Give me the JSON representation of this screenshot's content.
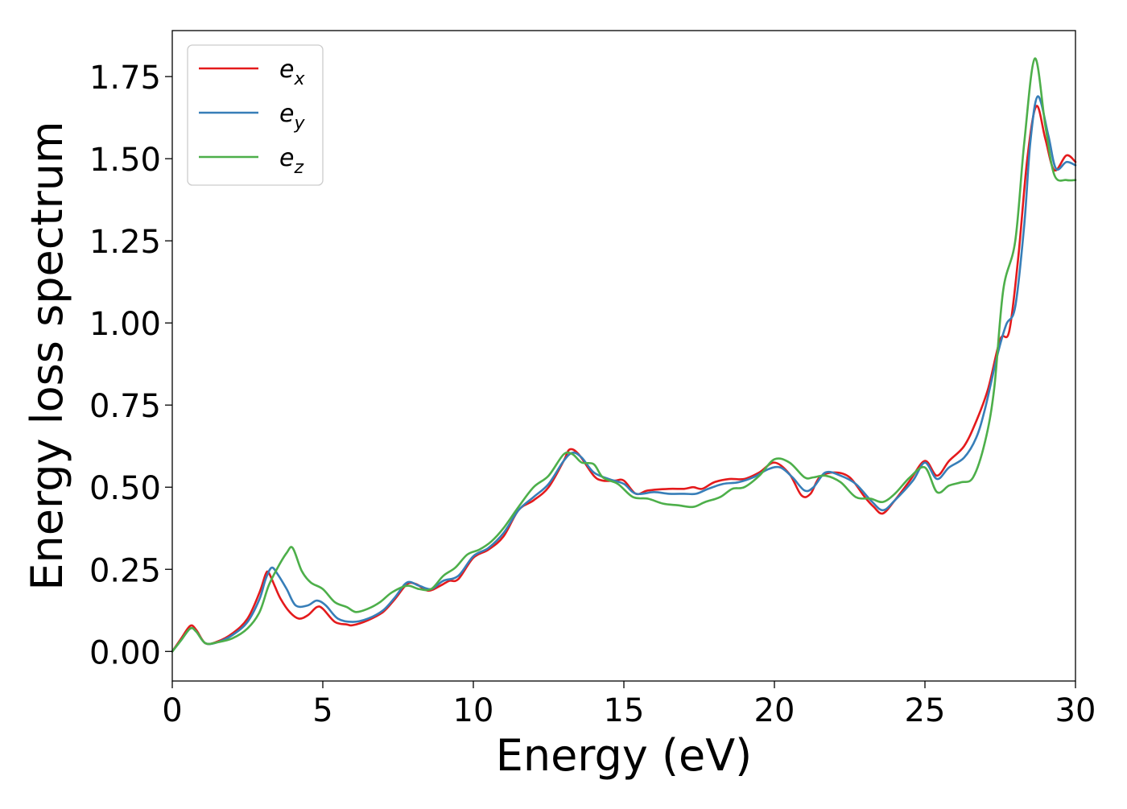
{
  "chart_data": {
    "type": "line",
    "xlabel": "Energy (eV)",
    "ylabel": "Energy loss spectrum",
    "xlim": [
      0,
      30
    ],
    "ylim": [
      -0.09,
      1.89
    ],
    "xticks": [
      0,
      5,
      10,
      15,
      20,
      25,
      30
    ],
    "xtick_labels": [
      "0",
      "5",
      "10",
      "15",
      "20",
      "25",
      "30"
    ],
    "yticks": [
      0,
      0.25,
      0.5,
      0.75,
      1.0,
      1.25,
      1.5,
      1.75
    ],
    "ytick_labels": [
      "0.00",
      "0.25",
      "0.50",
      "0.75",
      "1.00",
      "1.25",
      "1.50",
      "1.75"
    ],
    "grid": false,
    "legend_position": "top-left",
    "series": [
      {
        "name": "e_x",
        "legend_base": "e",
        "legend_sub": "x",
        "color": "#e41a1c",
        "points": [
          [
            0,
            0
          ],
          [
            0.3,
            0.04
          ],
          [
            0.6,
            0.078
          ],
          [
            0.8,
            0.065
          ],
          [
            1.1,
            0.025
          ],
          [
            1.5,
            0.03
          ],
          [
            2,
            0.055
          ],
          [
            2.5,
            0.1
          ],
          [
            2.9,
            0.18
          ],
          [
            3.1,
            0.235
          ],
          [
            3.2,
            0.24
          ],
          [
            3.4,
            0.2
          ],
          [
            3.6,
            0.16
          ],
          [
            3.9,
            0.12
          ],
          [
            4.2,
            0.1
          ],
          [
            4.5,
            0.11
          ],
          [
            4.8,
            0.135
          ],
          [
            5,
            0.13
          ],
          [
            5.4,
            0.09
          ],
          [
            5.8,
            0.082
          ],
          [
            6,
            0.08
          ],
          [
            6.5,
            0.095
          ],
          [
            7,
            0.12
          ],
          [
            7.4,
            0.16
          ],
          [
            7.8,
            0.205
          ],
          [
            8.1,
            0.205
          ],
          [
            8.5,
            0.185
          ],
          [
            8.9,
            0.2
          ],
          [
            9.2,
            0.215
          ],
          [
            9.5,
            0.22
          ],
          [
            10,
            0.285
          ],
          [
            10.5,
            0.31
          ],
          [
            11,
            0.35
          ],
          [
            11.5,
            0.43
          ],
          [
            12,
            0.46
          ],
          [
            12.5,
            0.5
          ],
          [
            13,
            0.58
          ],
          [
            13.2,
            0.615
          ],
          [
            13.5,
            0.6
          ],
          [
            14,
            0.535
          ],
          [
            14.3,
            0.52
          ],
          [
            14.7,
            0.52
          ],
          [
            15,
            0.52
          ],
          [
            15.4,
            0.48
          ],
          [
            15.8,
            0.49
          ],
          [
            16.5,
            0.495
          ],
          [
            17,
            0.495
          ],
          [
            17.3,
            0.5
          ],
          [
            17.6,
            0.495
          ],
          [
            18,
            0.515
          ],
          [
            18.5,
            0.525
          ],
          [
            19,
            0.525
          ],
          [
            19.5,
            0.545
          ],
          [
            20,
            0.575
          ],
          [
            20.5,
            0.54
          ],
          [
            20.9,
            0.475
          ],
          [
            21.2,
            0.48
          ],
          [
            21.5,
            0.53
          ],
          [
            22,
            0.545
          ],
          [
            22.5,
            0.53
          ],
          [
            23,
            0.47
          ],
          [
            23.3,
            0.44
          ],
          [
            23.6,
            0.42
          ],
          [
            24,
            0.46
          ],
          [
            24.5,
            0.52
          ],
          [
            25,
            0.58
          ],
          [
            25.4,
            0.535
          ],
          [
            25.8,
            0.58
          ],
          [
            26.3,
            0.625
          ],
          [
            26.7,
            0.7
          ],
          [
            27.1,
            0.8
          ],
          [
            27.5,
            0.95
          ],
          [
            27.8,
            0.975
          ],
          [
            28.1,
            1.2
          ],
          [
            28.4,
            1.5
          ],
          [
            28.7,
            1.66
          ],
          [
            29,
            1.56
          ],
          [
            29.3,
            1.465
          ],
          [
            29.7,
            1.51
          ],
          [
            30,
            1.49
          ]
        ]
      },
      {
        "name": "e_y",
        "legend_base": "e",
        "legend_sub": "y",
        "color": "#377eb8",
        "points": [
          [
            0,
            0
          ],
          [
            0.3,
            0.035
          ],
          [
            0.6,
            0.07
          ],
          [
            0.8,
            0.06
          ],
          [
            1.1,
            0.025
          ],
          [
            1.5,
            0.028
          ],
          [
            2,
            0.05
          ],
          [
            2.5,
            0.09
          ],
          [
            2.9,
            0.16
          ],
          [
            3.1,
            0.22
          ],
          [
            3.3,
            0.255
          ],
          [
            3.5,
            0.235
          ],
          [
            3.8,
            0.19
          ],
          [
            4.1,
            0.14
          ],
          [
            4.5,
            0.14
          ],
          [
            4.8,
            0.155
          ],
          [
            5.1,
            0.14
          ],
          [
            5.5,
            0.1
          ],
          [
            6,
            0.09
          ],
          [
            6.5,
            0.1
          ],
          [
            7,
            0.125
          ],
          [
            7.4,
            0.165
          ],
          [
            7.8,
            0.21
          ],
          [
            8.2,
            0.2
          ],
          [
            8.6,
            0.19
          ],
          [
            9,
            0.215
          ],
          [
            9.5,
            0.23
          ],
          [
            10,
            0.29
          ],
          [
            10.5,
            0.315
          ],
          [
            11,
            0.36
          ],
          [
            11.5,
            0.43
          ],
          [
            12,
            0.47
          ],
          [
            12.5,
            0.51
          ],
          [
            13,
            0.58
          ],
          [
            13.3,
            0.605
          ],
          [
            13.6,
            0.59
          ],
          [
            14,
            0.545
          ],
          [
            14.5,
            0.525
          ],
          [
            15,
            0.51
          ],
          [
            15.4,
            0.48
          ],
          [
            16,
            0.485
          ],
          [
            16.5,
            0.48
          ],
          [
            17,
            0.48
          ],
          [
            17.4,
            0.48
          ],
          [
            17.8,
            0.495
          ],
          [
            18.3,
            0.51
          ],
          [
            18.8,
            0.515
          ],
          [
            19.3,
            0.53
          ],
          [
            19.8,
            0.555
          ],
          [
            20.2,
            0.56
          ],
          [
            20.6,
            0.53
          ],
          [
            21,
            0.49
          ],
          [
            21.3,
            0.5
          ],
          [
            21.7,
            0.545
          ],
          [
            22.2,
            0.535
          ],
          [
            22.7,
            0.51
          ],
          [
            23.2,
            0.46
          ],
          [
            23.6,
            0.43
          ],
          [
            24,
            0.46
          ],
          [
            24.6,
            0.52
          ],
          [
            25,
            0.575
          ],
          [
            25.4,
            0.525
          ],
          [
            25.8,
            0.56
          ],
          [
            26.3,
            0.59
          ],
          [
            26.7,
            0.65
          ],
          [
            27,
            0.74
          ],
          [
            27.4,
            0.9
          ],
          [
            27.7,
            0.995
          ],
          [
            28,
            1.05
          ],
          [
            28.3,
            1.3
          ],
          [
            28.5,
            1.55
          ],
          [
            28.75,
            1.69
          ],
          [
            29.1,
            1.57
          ],
          [
            29.35,
            1.47
          ],
          [
            29.7,
            1.49
          ],
          [
            30,
            1.48
          ]
        ]
      },
      {
        "name": "e_z",
        "legend_base": "e",
        "legend_sub": "z",
        "color": "#4daf4a",
        "points": [
          [
            0,
            0
          ],
          [
            0.3,
            0.035
          ],
          [
            0.6,
            0.07
          ],
          [
            0.8,
            0.06
          ],
          [
            1.1,
            0.025
          ],
          [
            1.5,
            0.028
          ],
          [
            2,
            0.04
          ],
          [
            2.5,
            0.07
          ],
          [
            2.9,
            0.12
          ],
          [
            3.2,
            0.2
          ],
          [
            3.5,
            0.255
          ],
          [
            3.8,
            0.3
          ],
          [
            4,
            0.315
          ],
          [
            4.3,
            0.245
          ],
          [
            4.6,
            0.21
          ],
          [
            5,
            0.19
          ],
          [
            5.4,
            0.15
          ],
          [
            5.8,
            0.135
          ],
          [
            6.1,
            0.12
          ],
          [
            6.5,
            0.13
          ],
          [
            6.9,
            0.15
          ],
          [
            7.3,
            0.18
          ],
          [
            7.8,
            0.2
          ],
          [
            8.2,
            0.19
          ],
          [
            8.6,
            0.19
          ],
          [
            9,
            0.23
          ],
          [
            9.4,
            0.255
          ],
          [
            9.8,
            0.295
          ],
          [
            10.2,
            0.31
          ],
          [
            10.6,
            0.335
          ],
          [
            11,
            0.375
          ],
          [
            11.5,
            0.44
          ],
          [
            12,
            0.5
          ],
          [
            12.5,
            0.535
          ],
          [
            13,
            0.6
          ],
          [
            13.3,
            0.6
          ],
          [
            13.6,
            0.575
          ],
          [
            14,
            0.57
          ],
          [
            14.3,
            0.53
          ],
          [
            14.8,
            0.51
          ],
          [
            15.3,
            0.47
          ],
          [
            15.8,
            0.465
          ],
          [
            16.3,
            0.45
          ],
          [
            16.8,
            0.445
          ],
          [
            17.3,
            0.44
          ],
          [
            17.7,
            0.455
          ],
          [
            18.2,
            0.47
          ],
          [
            18.6,
            0.495
          ],
          [
            19,
            0.5
          ],
          [
            19.5,
            0.535
          ],
          [
            20,
            0.585
          ],
          [
            20.5,
            0.575
          ],
          [
            21,
            0.53
          ],
          [
            21.3,
            0.53
          ],
          [
            21.7,
            0.535
          ],
          [
            22.2,
            0.515
          ],
          [
            22.7,
            0.47
          ],
          [
            23.2,
            0.465
          ],
          [
            23.6,
            0.455
          ],
          [
            24,
            0.48
          ],
          [
            24.5,
            0.53
          ],
          [
            25,
            0.56
          ],
          [
            25.4,
            0.485
          ],
          [
            25.8,
            0.505
          ],
          [
            26.2,
            0.515
          ],
          [
            26.6,
            0.53
          ],
          [
            27,
            0.64
          ],
          [
            27.3,
            0.8
          ],
          [
            27.6,
            1.1
          ],
          [
            28,
            1.25
          ],
          [
            28.3,
            1.55
          ],
          [
            28.65,
            1.805
          ],
          [
            29,
            1.6
          ],
          [
            29.3,
            1.45
          ],
          [
            29.7,
            1.435
          ],
          [
            30,
            1.435
          ]
        ]
      }
    ]
  }
}
